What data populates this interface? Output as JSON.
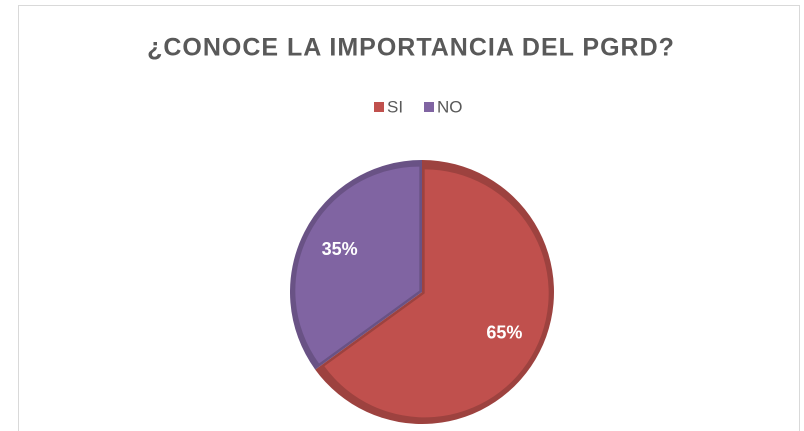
{
  "chart_data": {
    "type": "pie",
    "title": "¿CONOCE LA IMPORTANCIA DEL PGRD?",
    "categories": [
      "SI",
      "NO"
    ],
    "values": [
      65,
      35
    ],
    "value_labels": [
      "65%",
      "35%"
    ],
    "colors": [
      "#c0504d",
      "#8064a2"
    ],
    "legend": "top"
  }
}
